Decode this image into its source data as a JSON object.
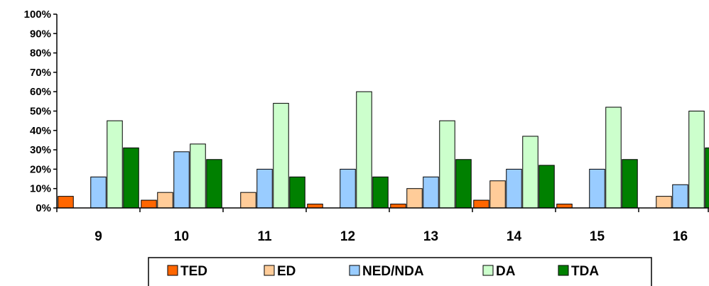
{
  "chart_data": {
    "type": "bar",
    "categories": [
      "9",
      "10",
      "11",
      "12",
      "13",
      "14",
      "15",
      "16"
    ],
    "series": [
      {
        "name": "TED",
        "color": "#ff6600",
        "values": [
          6,
          4,
          0,
          2,
          2,
          4,
          2,
          0
        ]
      },
      {
        "name": "ED",
        "color": "#ffcc99",
        "values": [
          0,
          8,
          8,
          0,
          10,
          14,
          0,
          6
        ]
      },
      {
        "name": "NED/NDA",
        "color": "#99ccff",
        "values": [
          16,
          29,
          20,
          20,
          16,
          20,
          20,
          12
        ]
      },
      {
        "name": "DA",
        "color": "#ccffcc",
        "values": [
          45,
          33,
          54,
          60,
          45,
          37,
          52,
          50
        ]
      },
      {
        "name": "TDA",
        "color": "#008000",
        "values": [
          31,
          25,
          16,
          16,
          25,
          22,
          25,
          31
        ]
      }
    ],
    "y_ticks": [
      "0%",
      "10%",
      "20%",
      "30%",
      "40%",
      "50%",
      "60%",
      "70%",
      "80%",
      "90%",
      "100%"
    ],
    "ylim": [
      0,
      100
    ],
    "y_unit": "%",
    "grid": false,
    "legend_position": "bottom",
    "title": "",
    "xlabel": "",
    "ylabel": ""
  }
}
